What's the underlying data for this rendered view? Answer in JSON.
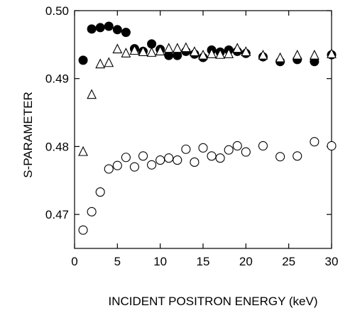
{
  "chart_data": {
    "type": "scatter",
    "title": "",
    "xlabel": "INCIDENT POSITRON ENERGY (keV)",
    "ylabel": "S-PARAMETER",
    "xlim": [
      0,
      30
    ],
    "ylim": [
      0.465,
      0.5
    ],
    "x_ticks": [
      0,
      5,
      10,
      15,
      20,
      25,
      30
    ],
    "x_tick_labels": [
      "0",
      "5",
      "10",
      "15",
      "20",
      "25",
      "30"
    ],
    "y_ticks": [
      0.47,
      0.48,
      0.49,
      0.5
    ],
    "y_tick_labels": [
      "0.47",
      "0.48",
      "0.49",
      "0.50"
    ],
    "grid": false,
    "legend": "none",
    "series": [
      {
        "marker": "filled-circle",
        "color": "#000000",
        "x": [
          1,
          2,
          3,
          4,
          5,
          6,
          7,
          8,
          9,
          10,
          11,
          12,
          13,
          14,
          15,
          16,
          17,
          18,
          19,
          20,
          22,
          24,
          26,
          28,
          30
        ],
        "y": [
          0.4927,
          0.4973,
          0.4975,
          0.4977,
          0.4972,
          0.4968,
          0.4944,
          0.494,
          0.4951,
          0.4943,
          0.4934,
          0.4934,
          0.494,
          0.4936,
          0.4931,
          0.4942,
          0.4939,
          0.4942,
          0.494,
          0.4937,
          0.4932,
          0.4925,
          0.4928,
          0.4925,
          0.4935
        ]
      },
      {
        "marker": "open-triangle",
        "color": "#000000",
        "x": [
          1,
          2,
          3,
          4,
          5,
          6,
          7,
          8,
          9,
          10,
          11,
          12,
          13,
          14,
          15,
          16,
          17,
          18,
          19,
          20,
          22,
          24,
          26,
          28,
          30
        ],
        "y": [
          0.4792,
          0.4876,
          0.4921,
          0.4923,
          0.4943,
          0.4937,
          0.4941,
          0.4939,
          0.4938,
          0.494,
          0.4944,
          0.4944,
          0.4945,
          0.4939,
          0.4934,
          0.4936,
          0.4935,
          0.4936,
          0.4944,
          0.4939,
          0.4934,
          0.493,
          0.4934,
          0.4934,
          0.4936
        ]
      },
      {
        "marker": "open-circle",
        "color": "#000000",
        "x": [
          1,
          2,
          3,
          4,
          5,
          6,
          7,
          8,
          9,
          10,
          11,
          12,
          13,
          14,
          15,
          16,
          17,
          18,
          19,
          20,
          22,
          24,
          26,
          28,
          30
        ],
        "y": [
          0.4677,
          0.4704,
          0.4733,
          0.4767,
          0.4772,
          0.4784,
          0.477,
          0.4786,
          0.4773,
          0.478,
          0.4783,
          0.478,
          0.4796,
          0.4777,
          0.4798,
          0.4786,
          0.4783,
          0.4795,
          0.4801,
          0.4792,
          0.4801,
          0.4785,
          0.4786,
          0.4807,
          0.4801
        ]
      }
    ]
  }
}
